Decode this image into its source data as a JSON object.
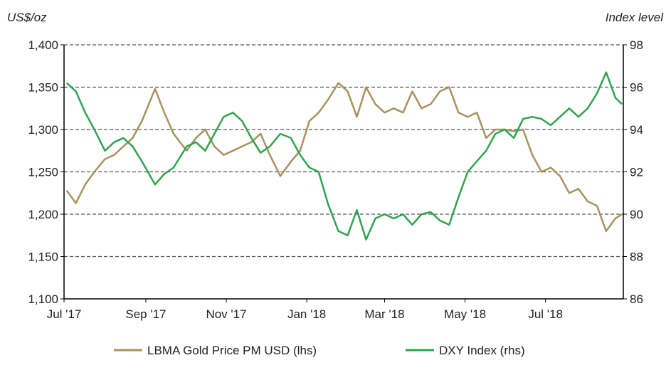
{
  "chart_data": {
    "type": "line",
    "ylabel_left": "US$/oz",
    "ylabel_right": "Index level",
    "x_range": [
      "2017-07-01",
      "2018-08-29"
    ],
    "xticks": [
      {
        "date": "2017-07-01",
        "label": "Jul '17"
      },
      {
        "date": "2017-09-01",
        "label": "Sep '17"
      },
      {
        "date": "2017-11-01",
        "label": "Nov '17"
      },
      {
        "date": "2018-01-01",
        "label": "Jan '18"
      },
      {
        "date": "2018-03-01",
        "label": "Mar '18"
      },
      {
        "date": "2018-05-01",
        "label": "May '18"
      },
      {
        "date": "2018-07-01",
        "label": "Jul '18"
      }
    ],
    "ylim_left": [
      1100,
      1400
    ],
    "yticks_left": [
      "1,100",
      "1,150",
      "1,200",
      "1,250",
      "1,300",
      "1,350",
      "1,400"
    ],
    "ylim_right": [
      86,
      98
    ],
    "yticks_right": [
      "86",
      "88",
      "90",
      "92",
      "94",
      "96",
      "98"
    ],
    "grid": "horizontal dashed",
    "legend_placement": "bottom",
    "x": [
      "2017-07-03",
      "2017-07-10",
      "2017-07-17",
      "2017-07-24",
      "2017-08-01",
      "2017-08-08",
      "2017-08-15",
      "2017-08-22",
      "2017-08-29",
      "2017-09-08",
      "2017-09-15",
      "2017-09-22",
      "2017-10-02",
      "2017-10-09",
      "2017-10-16",
      "2017-10-23",
      "2017-10-30",
      "2017-11-06",
      "2017-11-13",
      "2017-11-20",
      "2017-11-27",
      "2017-12-04",
      "2017-12-12",
      "2017-12-20",
      "2017-12-27",
      "2018-01-03",
      "2018-01-10",
      "2018-01-17",
      "2018-01-25",
      "2018-02-01",
      "2018-02-08",
      "2018-02-15",
      "2018-02-22",
      "2018-03-01",
      "2018-03-08",
      "2018-03-15",
      "2018-03-22",
      "2018-03-29",
      "2018-04-05",
      "2018-04-12",
      "2018-04-19",
      "2018-04-26",
      "2018-05-03",
      "2018-05-10",
      "2018-05-17",
      "2018-05-24",
      "2018-05-31",
      "2018-06-07",
      "2018-06-14",
      "2018-06-21",
      "2018-06-28",
      "2018-07-05",
      "2018-07-12",
      "2018-07-19",
      "2018-07-26",
      "2018-08-02",
      "2018-08-09",
      "2018-08-16",
      "2018-08-23",
      "2018-08-28"
    ],
    "series": [
      {
        "name": "LBMA Gold Price PM USD (lhs)",
        "axis": "left",
        "color": "#A8925E",
        "values": [
          1228,
          1213,
          1235,
          1250,
          1265,
          1270,
          1280,
          1290,
          1310,
          1348,
          1320,
          1295,
          1275,
          1290,
          1300,
          1280,
          1270,
          1275,
          1280,
          1285,
          1295,
          1270,
          1245,
          1262,
          1275,
          1310,
          1320,
          1335,
          1355,
          1345,
          1315,
          1350,
          1330,
          1320,
          1325,
          1320,
          1345,
          1325,
          1330,
          1345,
          1350,
          1320,
          1315,
          1320,
          1290,
          1300,
          1300,
          1298,
          1300,
          1270,
          1250,
          1255,
          1245,
          1225,
          1230,
          1215,
          1210,
          1180,
          1195,
          1200
        ]
      },
      {
        "name": "DXY Index (rhs)",
        "axis": "right",
        "color": "#2EA44F",
        "values": [
          96.2,
          95.8,
          94.8,
          94.0,
          93.0,
          93.4,
          93.6,
          93.2,
          92.5,
          91.4,
          91.9,
          92.2,
          93.2,
          93.4,
          93.0,
          93.8,
          94.6,
          94.8,
          94.4,
          93.6,
          92.9,
          93.2,
          93.8,
          93.6,
          92.8,
          92.2,
          92.0,
          90.5,
          89.2,
          89.0,
          90.2,
          88.8,
          89.8,
          90.0,
          89.8,
          90.0,
          89.5,
          90.0,
          90.1,
          89.7,
          89.5,
          90.8,
          92.0,
          92.5,
          93.0,
          93.8,
          94.0,
          93.6,
          94.5,
          94.6,
          94.5,
          94.2,
          94.6,
          95.0,
          94.6,
          95.0,
          95.7,
          96.7,
          95.5,
          95.2
        ]
      }
    ]
  }
}
